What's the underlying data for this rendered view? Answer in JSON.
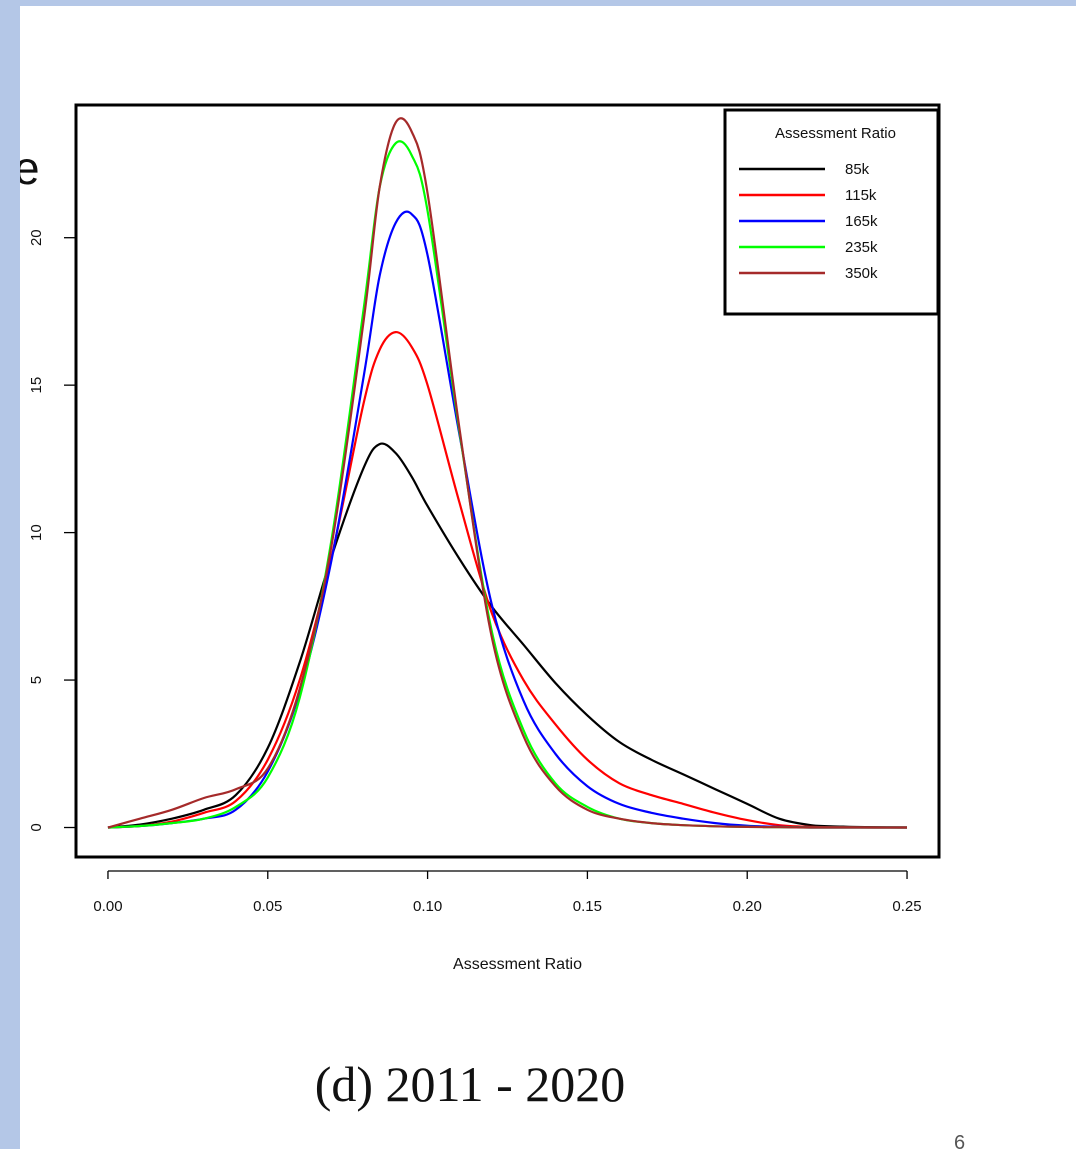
{
  "slide": {
    "caption": "(d) 2011 - 2020",
    "page_number": "6",
    "cutoff_text": "e"
  },
  "chart_data": {
    "type": "line",
    "title": "",
    "xlabel": "Assessment Ratio",
    "ylabel": "",
    "xlim": [
      -0.01,
      0.26
    ],
    "ylim": [
      -1,
      24.5
    ],
    "x_ticks": [
      0.0,
      0.05,
      0.1,
      0.15,
      0.2,
      0.25
    ],
    "x_tick_labels": [
      "0.00",
      "0.05",
      "0.10",
      "0.15",
      "0.20",
      "0.25"
    ],
    "y_ticks": [
      0,
      5,
      10,
      15,
      20
    ],
    "y_tick_labels": [
      "0",
      "5",
      "10",
      "15",
      "20"
    ],
    "grid": false,
    "legend": {
      "title": "Assessment Ratio",
      "placement": "top-right"
    },
    "x": [
      0.0,
      0.01,
      0.02,
      0.03,
      0.04,
      0.05,
      0.06,
      0.07,
      0.08,
      0.085,
      0.09,
      0.095,
      0.1,
      0.11,
      0.12,
      0.13,
      0.14,
      0.15,
      0.16,
      0.17,
      0.18,
      0.19,
      0.2,
      0.21,
      0.22,
      0.23,
      0.24,
      0.25
    ],
    "series": [
      {
        "name": "85k",
        "color": "#000000",
        "values": [
          0.0,
          0.1,
          0.3,
          0.6,
          1.1,
          2.7,
          5.6,
          9.2,
          12.2,
          13.0,
          12.7,
          11.9,
          10.9,
          9.1,
          7.5,
          6.2,
          4.9,
          3.8,
          2.9,
          2.3,
          1.8,
          1.3,
          0.8,
          0.3,
          0.08,
          0.03,
          0.01,
          0.0
        ]
      },
      {
        "name": "115k",
        "color": "#ff0000",
        "values": [
          0.0,
          0.05,
          0.2,
          0.5,
          0.9,
          2.3,
          5.0,
          9.2,
          14.4,
          16.2,
          16.8,
          16.3,
          15.0,
          11.0,
          7.3,
          5.0,
          3.5,
          2.3,
          1.5,
          1.1,
          0.8,
          0.5,
          0.25,
          0.08,
          0.02,
          0.01,
          0.0,
          0.0
        ]
      },
      {
        "name": "165k",
        "color": "#0000ff",
        "values": [
          0.0,
          0.05,
          0.15,
          0.3,
          0.6,
          1.9,
          4.6,
          9.1,
          15.3,
          18.7,
          20.5,
          20.8,
          19.4,
          13.3,
          7.6,
          4.3,
          2.5,
          1.4,
          0.8,
          0.5,
          0.3,
          0.15,
          0.06,
          0.02,
          0.0,
          0.0,
          0.0,
          0.0
        ]
      },
      {
        "name": "235k",
        "color": "#00ff00",
        "values": [
          0.0,
          0.05,
          0.15,
          0.3,
          0.7,
          1.7,
          4.4,
          9.8,
          17.6,
          21.7,
          23.2,
          22.8,
          20.9,
          13.4,
          6.7,
          3.3,
          1.5,
          0.7,
          0.3,
          0.15,
          0.08,
          0.04,
          0.02,
          0.01,
          0.0,
          0.0,
          0.0,
          0.0
        ]
      },
      {
        "name": "350k",
        "color": "#a52a2a",
        "values": [
          0.0,
          0.3,
          0.6,
          1.0,
          1.3,
          2.0,
          4.7,
          9.6,
          17.2,
          21.7,
          23.9,
          23.6,
          21.5,
          13.5,
          6.5,
          3.1,
          1.4,
          0.6,
          0.3,
          0.15,
          0.08,
          0.04,
          0.02,
          0.01,
          0.0,
          0.0,
          0.0,
          0.0
        ]
      }
    ]
  }
}
